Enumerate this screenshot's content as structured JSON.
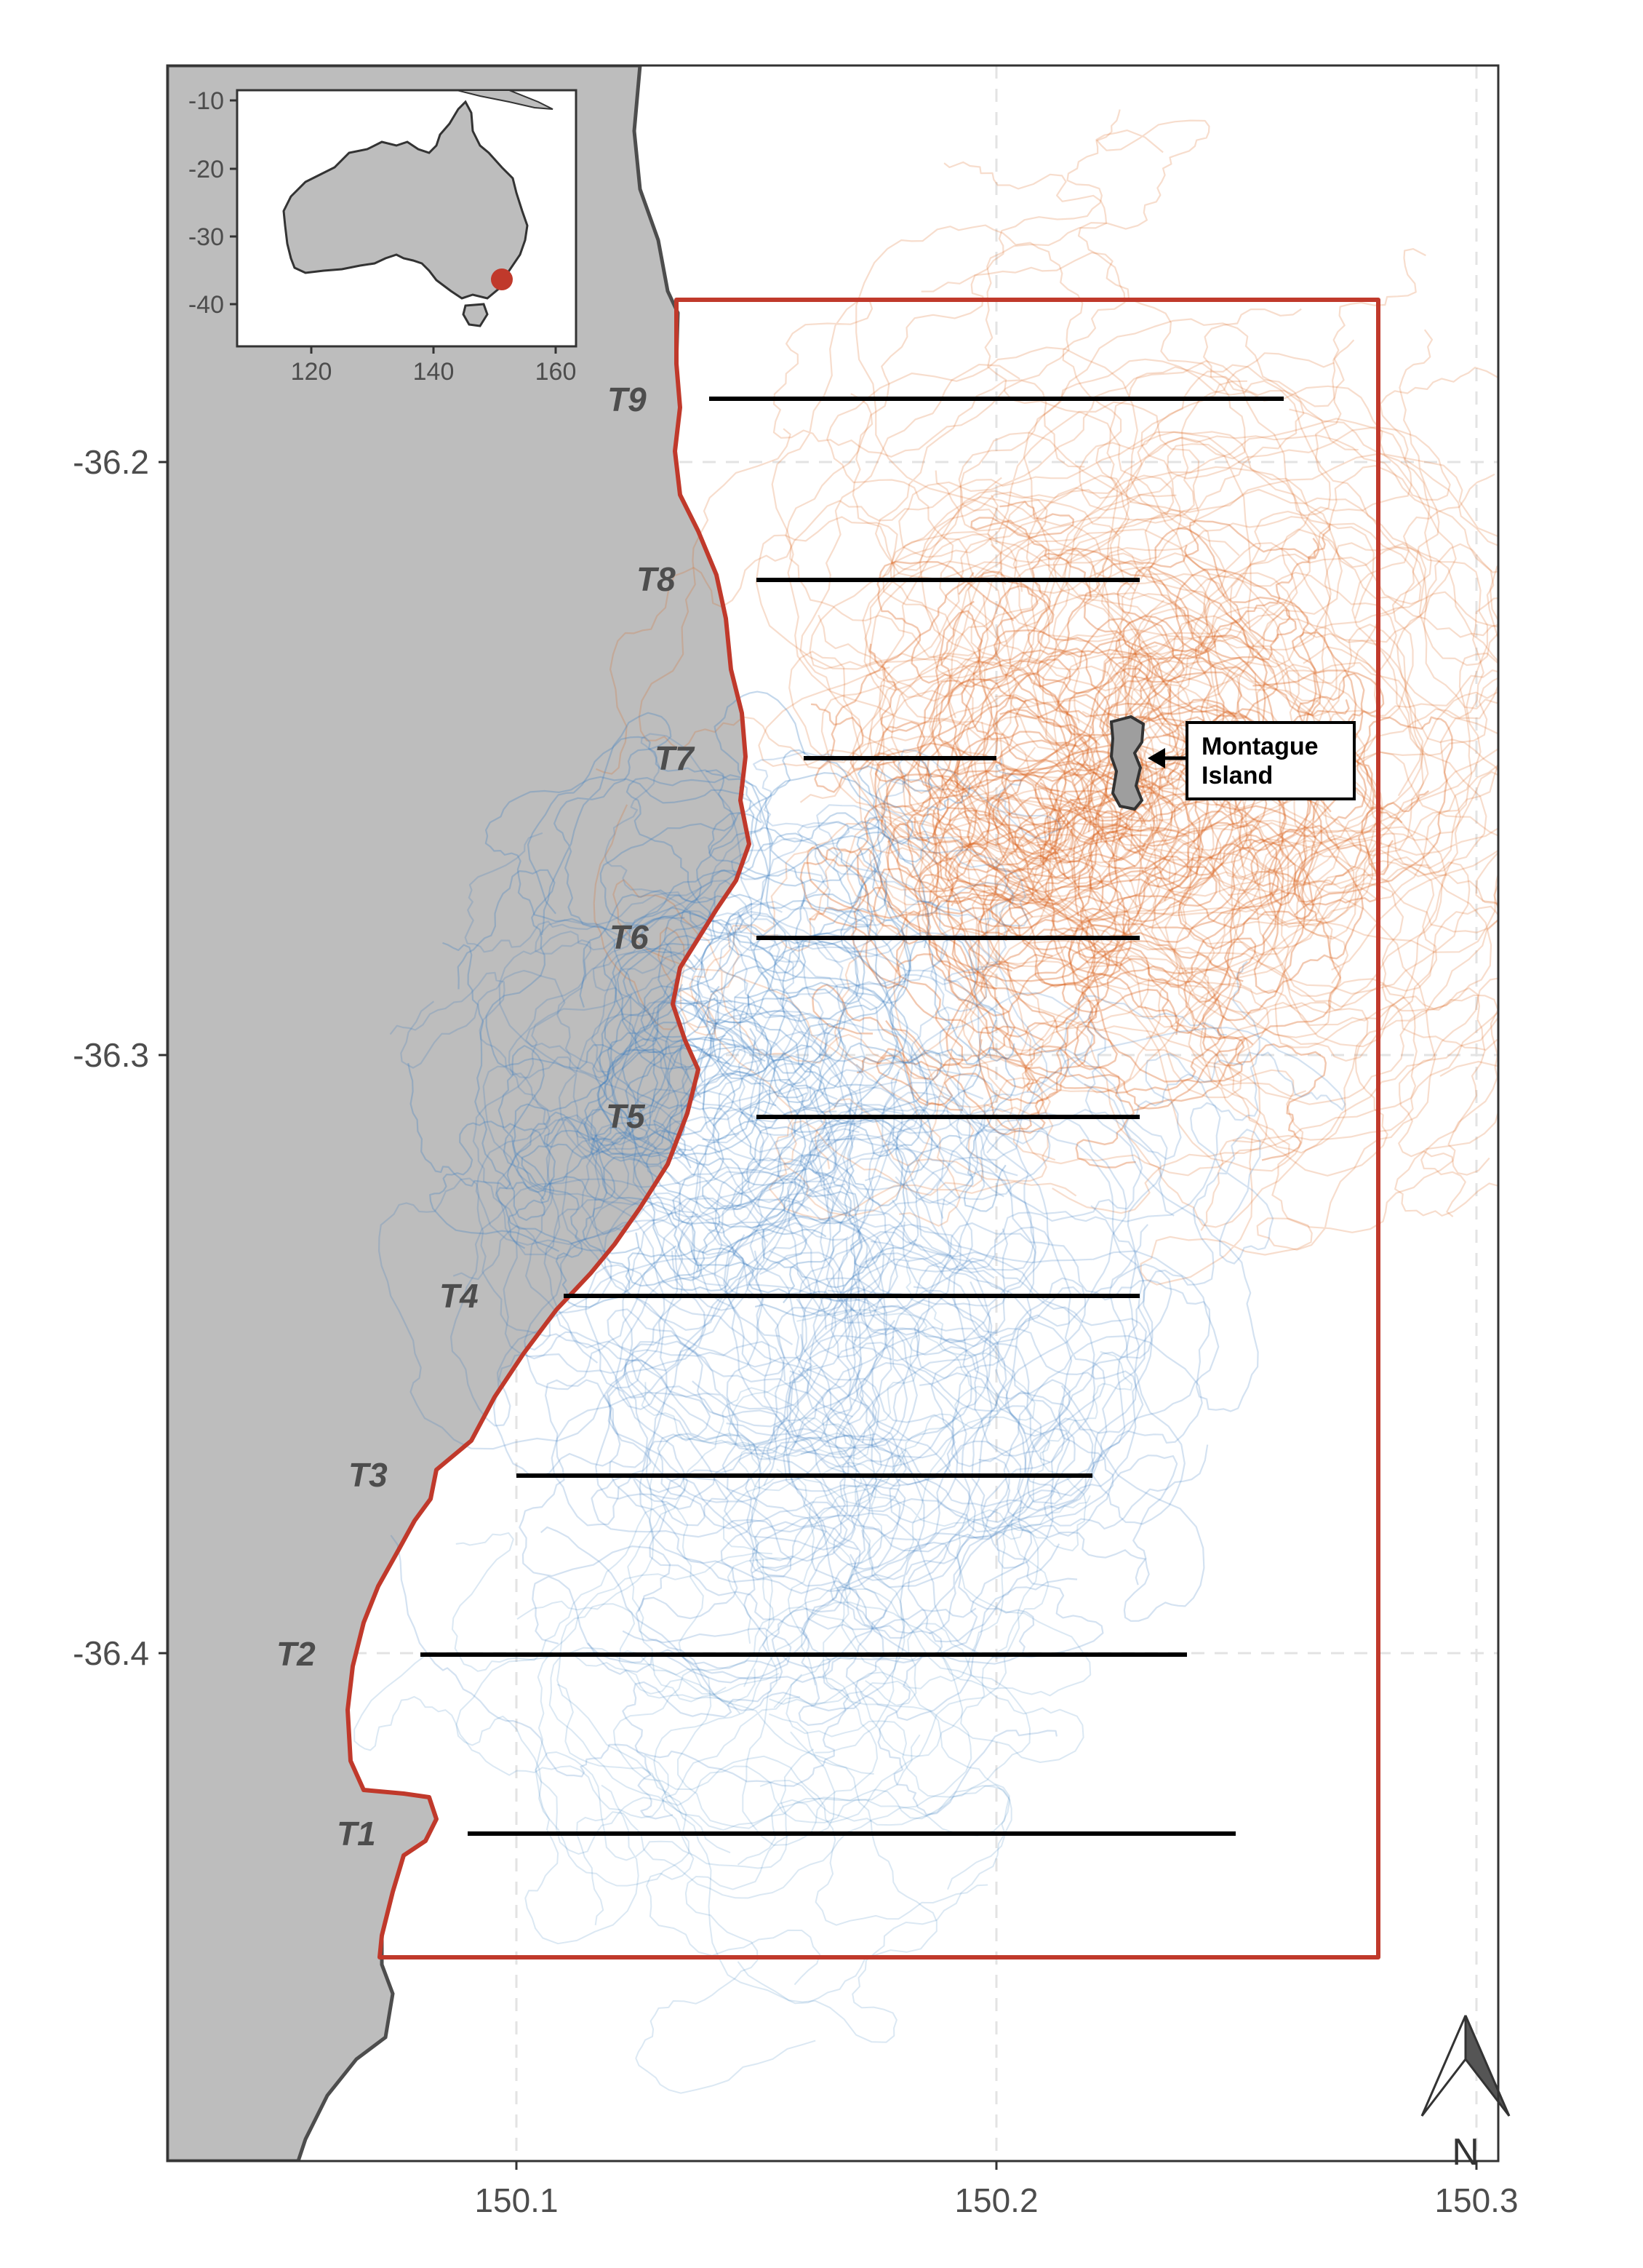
{
  "colors": {
    "land": "#bdbdbd",
    "coast": "#4d4d4d",
    "study_area": "#c0392b",
    "track_blue": "#3a7dbf",
    "track_orange": "#d9621c",
    "transect": "#000000",
    "grid": "#e0e0e0",
    "inset_marker": "#c0392b"
  },
  "axes": {
    "x_ticks": [
      "150.1",
      "150.2",
      "150.3"
    ],
    "y_ticks": [
      "-36.2",
      "-36.3",
      "-36.4"
    ]
  },
  "inset": {
    "x_ticks": [
      "120",
      "140",
      "160"
    ],
    "y_ticks": [
      "-10",
      "-20",
      "-30",
      "-40"
    ],
    "marker": "red-location-marker"
  },
  "transects": [
    {
      "label": "T9"
    },
    {
      "label": "T8"
    },
    {
      "label": "T7"
    },
    {
      "label": "T6"
    },
    {
      "label": "T5"
    },
    {
      "label": "T4"
    },
    {
      "label": "T3"
    },
    {
      "label": "T2"
    },
    {
      "label": "T1"
    }
  ],
  "callout": {
    "line1": "Montague",
    "line2": "Island"
  },
  "north_arrow": {
    "label": "N",
    "icon": "north-arrow-icon"
  }
}
